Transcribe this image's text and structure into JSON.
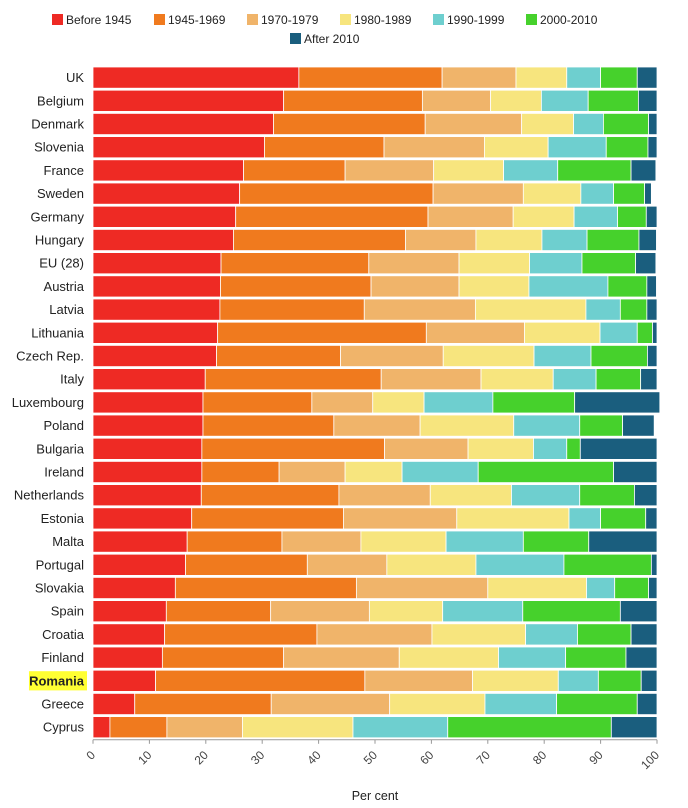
{
  "chart_data": {
    "type": "bar",
    "orientation": "horizontal",
    "stacked": true,
    "xlabel": "Per cent",
    "xlim": [
      0,
      100
    ],
    "xticks": [
      "0",
      "10",
      "20",
      "30",
      "40",
      "50",
      "60",
      "70",
      "80",
      "90",
      "100"
    ],
    "highlighted_category": "Romania",
    "highlight_color": "#ffff33",
    "legend_position": "top-left",
    "categories": [
      "UK",
      "Belgium",
      "Denmark",
      "Slovenia",
      "France",
      "Sweden",
      "Germany",
      "Hungary",
      "EU (28)",
      "Austria",
      "Latvia",
      "Lithuania",
      "Czech Rep.",
      "Italy",
      "Luxembourg",
      "Poland",
      "Bulgaria",
      "Ireland",
      "Netherlands",
      "Estonia",
      "Malta",
      "Portugal",
      "Slovakia",
      "Spain",
      "Croatia",
      "Finland",
      "Romania",
      "Greece",
      "Cyprus"
    ],
    "series": [
      {
        "name": "Before 1945",
        "color": "#ee2a24",
        "values": [
          36.5,
          33.8,
          32.0,
          30.4,
          26.7,
          26.0,
          25.3,
          24.9,
          22.7,
          22.6,
          22.5,
          22.1,
          21.9,
          19.9,
          19.5,
          19.5,
          19.3,
          19.3,
          19.2,
          17.5,
          16.7,
          16.4,
          14.6,
          13.0,
          12.7,
          12.3,
          11.1,
          7.4,
          3.0
        ]
      },
      {
        "name": "1945-1969",
        "color": "#f07a1e",
        "values": [
          25.4,
          24.6,
          26.9,
          21.2,
          18.0,
          34.3,
          34.1,
          30.5,
          26.2,
          26.7,
          25.6,
          37.0,
          22.0,
          31.2,
          19.3,
          23.2,
          32.4,
          13.7,
          24.4,
          26.9,
          16.8,
          21.6,
          32.1,
          18.5,
          27.0,
          21.5,
          37.1,
          24.2,
          10.1
        ]
      },
      {
        "name": "1970-1979",
        "color": "#f0b46a",
        "values": [
          13.1,
          12.1,
          17.1,
          17.8,
          15.7,
          16.0,
          15.1,
          12.5,
          16.0,
          15.6,
          19.7,
          17.4,
          18.2,
          17.7,
          10.8,
          15.3,
          14.8,
          11.7,
          16.2,
          20.1,
          14.0,
          14.1,
          23.3,
          17.5,
          20.4,
          20.5,
          19.1,
          21.0,
          13.4
        ]
      },
      {
        "name": "1980-1989",
        "color": "#f7e57e",
        "values": [
          9.0,
          9.0,
          9.2,
          11.3,
          12.4,
          10.2,
          10.8,
          11.7,
          12.5,
          12.4,
          19.6,
          13.4,
          16.1,
          12.8,
          9.1,
          16.6,
          11.6,
          10.1,
          14.4,
          19.9,
          15.1,
          15.8,
          17.5,
          13.0,
          16.6,
          17.6,
          15.2,
          16.9,
          19.6
        ]
      },
      {
        "name": "1990-1999",
        "color": "#6ecfcf",
        "values": [
          6.0,
          8.3,
          5.3,
          10.3,
          9.6,
          5.8,
          7.7,
          8.0,
          9.3,
          14.0,
          6.1,
          6.6,
          10.1,
          7.6,
          12.2,
          11.7,
          5.9,
          13.5,
          12.1,
          5.6,
          13.7,
          15.6,
          5.0,
          14.2,
          9.2,
          11.9,
          7.1,
          12.7,
          16.8
        ]
      },
      {
        "name": "2000-2010",
        "color": "#46d12c",
        "values": [
          6.5,
          8.9,
          8.0,
          7.4,
          13.0,
          5.5,
          5.1,
          9.2,
          9.5,
          6.9,
          4.7,
          2.7,
          10.0,
          7.9,
          14.5,
          7.6,
          2.4,
          24.0,
          9.7,
          8.0,
          11.6,
          15.5,
          6.0,
          17.3,
          9.5,
          10.7,
          7.6,
          14.3,
          29.0
        ]
      },
      {
        "name": "After 2010",
        "color": "#1a5e7e",
        "values": [
          3.5,
          3.3,
          1.5,
          1.6,
          4.4,
          1.2,
          1.9,
          3.1,
          3.6,
          1.7,
          1.8,
          0.8,
          1.7,
          2.9,
          15.1,
          5.6,
          13.6,
          7.7,
          4.0,
          2.0,
          12.1,
          1.0,
          1.5,
          6.5,
          4.6,
          5.5,
          2.8,
          3.5,
          8.1
        ]
      }
    ]
  }
}
